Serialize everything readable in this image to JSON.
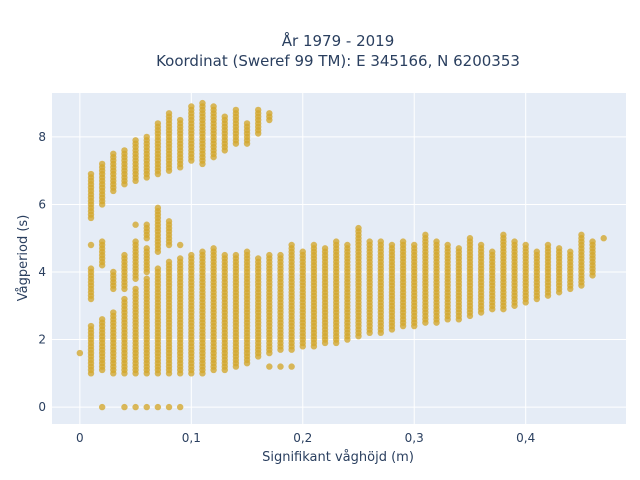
{
  "chart_data": {
    "type": "scatter",
    "title": "År 1979 - 2019",
    "subtitle": "Koordinat (Sweref 99 TM): E 345166, N 6200353",
    "xlabel": "Signifikant våghöjd (m)",
    "ylabel": "Vågperiod (s)",
    "xlim": [
      -0.025,
      0.49
    ],
    "ylim": [
      -0.5,
      9.3
    ],
    "x_ticks": [
      0,
      0.1,
      0.2,
      0.3,
      0.4
    ],
    "x_tick_labels": [
      "0",
      "0,1",
      "0,2",
      "0,3",
      "0,4"
    ],
    "y_ticks": [
      0,
      2,
      4,
      6,
      8
    ],
    "y_tick_labels": [
      "0",
      "2",
      "4",
      "6",
      "8"
    ],
    "grid": true,
    "marker_color": "#d4a72c",
    "plot_bg": "#e5ecf6",
    "columns": [
      {
        "x": 0.0,
        "ranges": [
          [
            1.6,
            1.6
          ]
        ]
      },
      {
        "x": 0.01,
        "ranges": [
          [
            1.0,
            2.4
          ],
          [
            3.2,
            4.1
          ],
          [
            4.8,
            4.8
          ],
          [
            5.6,
            6.9
          ]
        ]
      },
      {
        "x": 0.02,
        "ranges": [
          [
            0.0,
            0.0
          ],
          [
            1.1,
            2.6
          ],
          [
            4.2,
            4.9
          ],
          [
            6.0,
            7.2
          ]
        ]
      },
      {
        "x": 0.03,
        "ranges": [
          [
            1.0,
            2.8
          ],
          [
            3.5,
            4.0
          ],
          [
            6.4,
            7.5
          ]
        ]
      },
      {
        "x": 0.04,
        "ranges": [
          [
            0.0,
            0.0
          ],
          [
            1.0,
            3.2
          ],
          [
            3.5,
            4.5
          ],
          [
            6.6,
            7.6
          ]
        ]
      },
      {
        "x": 0.05,
        "ranges": [
          [
            0.0,
            0.0
          ],
          [
            1.0,
            3.5
          ],
          [
            3.8,
            4.9
          ],
          [
            5.4,
            5.4
          ],
          [
            6.7,
            7.9
          ]
        ]
      },
      {
        "x": 0.06,
        "ranges": [
          [
            0.0,
            0.0
          ],
          [
            1.0,
            3.8
          ],
          [
            4.0,
            4.7
          ],
          [
            5.0,
            5.4
          ],
          [
            6.8,
            8.0
          ]
        ]
      },
      {
        "x": 0.07,
        "ranges": [
          [
            0.0,
            0.0
          ],
          [
            1.0,
            4.1
          ],
          [
            4.6,
            5.9
          ],
          [
            6.9,
            8.4
          ]
        ]
      },
      {
        "x": 0.08,
        "ranges": [
          [
            0.0,
            0.0
          ],
          [
            1.0,
            4.3
          ],
          [
            4.8,
            5.5
          ],
          [
            7.0,
            8.7
          ]
        ]
      },
      {
        "x": 0.09,
        "ranges": [
          [
            0.0,
            0.0
          ],
          [
            1.0,
            4.4
          ],
          [
            4.8,
            4.8
          ],
          [
            7.1,
            8.5
          ]
        ]
      },
      {
        "x": 0.1,
        "ranges": [
          [
            1.0,
            4.5
          ],
          [
            7.3,
            8.9
          ]
        ]
      },
      {
        "x": 0.11,
        "ranges": [
          [
            1.0,
            4.6
          ],
          [
            7.2,
            9.0
          ]
        ]
      },
      {
        "x": 0.12,
        "ranges": [
          [
            1.1,
            4.7
          ],
          [
            7.4,
            8.9
          ]
        ]
      },
      {
        "x": 0.13,
        "ranges": [
          [
            1.1,
            4.5
          ],
          [
            7.6,
            8.6
          ]
        ]
      },
      {
        "x": 0.14,
        "ranges": [
          [
            1.2,
            4.5
          ],
          [
            7.8,
            8.8
          ]
        ]
      },
      {
        "x": 0.15,
        "ranges": [
          [
            1.3,
            4.6
          ],
          [
            7.8,
            8.4
          ]
        ]
      },
      {
        "x": 0.16,
        "ranges": [
          [
            1.5,
            4.4
          ],
          [
            8.1,
            8.8
          ]
        ]
      },
      {
        "x": 0.17,
        "ranges": [
          [
            1.2,
            1.2
          ],
          [
            1.6,
            4.5
          ],
          [
            8.5,
            8.7
          ]
        ]
      },
      {
        "x": 0.18,
        "ranges": [
          [
            1.2,
            1.2
          ],
          [
            1.7,
            4.5
          ]
        ]
      },
      {
        "x": 0.19,
        "ranges": [
          [
            1.2,
            1.2
          ],
          [
            1.7,
            4.8
          ]
        ]
      },
      {
        "x": 0.2,
        "ranges": [
          [
            1.8,
            4.6
          ]
        ]
      },
      {
        "x": 0.21,
        "ranges": [
          [
            1.8,
            4.8
          ]
        ]
      },
      {
        "x": 0.22,
        "ranges": [
          [
            1.9,
            4.7
          ]
        ]
      },
      {
        "x": 0.23,
        "ranges": [
          [
            1.9,
            4.9
          ]
        ]
      },
      {
        "x": 0.24,
        "ranges": [
          [
            2.0,
            4.8
          ]
        ]
      },
      {
        "x": 0.25,
        "ranges": [
          [
            2.1,
            5.3
          ]
        ]
      },
      {
        "x": 0.26,
        "ranges": [
          [
            2.2,
            4.9
          ]
        ]
      },
      {
        "x": 0.27,
        "ranges": [
          [
            2.2,
            4.9
          ]
        ]
      },
      {
        "x": 0.28,
        "ranges": [
          [
            2.3,
            4.8
          ]
        ]
      },
      {
        "x": 0.29,
        "ranges": [
          [
            2.4,
            4.9
          ]
        ]
      },
      {
        "x": 0.3,
        "ranges": [
          [
            2.4,
            4.8
          ]
        ]
      },
      {
        "x": 0.31,
        "ranges": [
          [
            2.5,
            5.1
          ]
        ]
      },
      {
        "x": 0.32,
        "ranges": [
          [
            2.5,
            4.9
          ]
        ]
      },
      {
        "x": 0.33,
        "ranges": [
          [
            2.6,
            4.8
          ]
        ]
      },
      {
        "x": 0.34,
        "ranges": [
          [
            2.6,
            4.7
          ]
        ]
      },
      {
        "x": 0.35,
        "ranges": [
          [
            2.7,
            5.0
          ]
        ]
      },
      {
        "x": 0.36,
        "ranges": [
          [
            2.8,
            4.8
          ]
        ]
      },
      {
        "x": 0.37,
        "ranges": [
          [
            2.9,
            4.6
          ]
        ]
      },
      {
        "x": 0.38,
        "ranges": [
          [
            2.9,
            5.1
          ]
        ]
      },
      {
        "x": 0.39,
        "ranges": [
          [
            3.0,
            4.9
          ]
        ]
      },
      {
        "x": 0.4,
        "ranges": [
          [
            3.1,
            4.8
          ]
        ]
      },
      {
        "x": 0.41,
        "ranges": [
          [
            3.2,
            4.6
          ]
        ]
      },
      {
        "x": 0.42,
        "ranges": [
          [
            3.3,
            4.8
          ]
        ]
      },
      {
        "x": 0.43,
        "ranges": [
          [
            3.4,
            4.7
          ]
        ]
      },
      {
        "x": 0.44,
        "ranges": [
          [
            3.5,
            4.6
          ]
        ]
      },
      {
        "x": 0.45,
        "ranges": [
          [
            3.6,
            5.1
          ]
        ]
      },
      {
        "x": 0.46,
        "ranges": [
          [
            3.9,
            4.9
          ]
        ]
      },
      {
        "x": 0.47,
        "ranges": [
          [
            5.0,
            5.0
          ]
        ]
      }
    ]
  }
}
